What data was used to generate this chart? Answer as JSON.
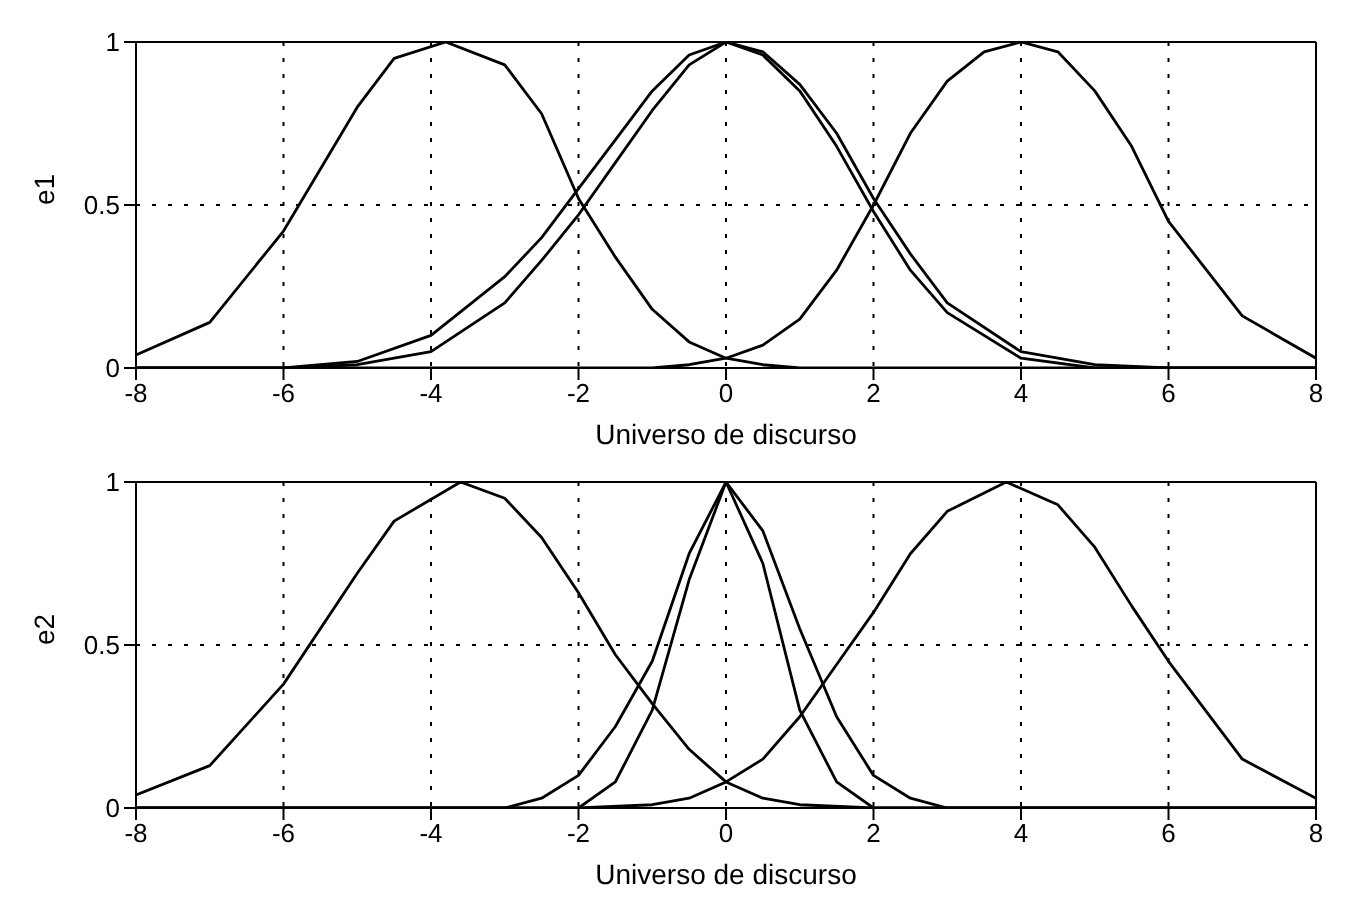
{
  "chart_data": [
    {
      "type": "line",
      "xlabel": "Universo de discurso",
      "ylabel": "e1",
      "xlim": [
        -8,
        8
      ],
      "xticks": [
        -8,
        -6,
        -4,
        -2,
        0,
        2,
        4,
        6,
        8
      ],
      "ylim": [
        0,
        1
      ],
      "yticks": [
        0,
        0.5,
        1
      ],
      "grid": true,
      "marker": "none",
      "line_style": "solid",
      "series": [
        {
          "color": "#000000",
          "x": [
            -8,
            -7,
            -6,
            -5,
            -4.5,
            -3.8,
            -3,
            -2.5,
            -2,
            -1.5,
            -1,
            -0.5,
            0,
            0.5,
            1,
            8
          ],
          "values": [
            0.04,
            0.14,
            0.42,
            0.8,
            0.95,
            1,
            0.93,
            0.78,
            0.52,
            0.34,
            0.18,
            0.08,
            0.03,
            0.01,
            0,
            0
          ]
        },
        {
          "color": "#000000",
          "x": [
            -8,
            -1,
            -0.5,
            0,
            0.5,
            1,
            1.5,
            2,
            2.5,
            3,
            3.5,
            4,
            4.5,
            5,
            5.5,
            6,
            7,
            8
          ],
          "values": [
            0,
            0,
            0.01,
            0.03,
            0.07,
            0.15,
            0.3,
            0.5,
            0.72,
            0.88,
            0.97,
            1,
            0.97,
            0.85,
            0.68,
            0.45,
            0.16,
            0.03
          ]
        },
        {
          "color": "#000000",
          "x": [
            -8,
            -6,
            -5,
            -4,
            -3,
            -2.5,
            -2,
            -1.5,
            -1,
            -0.5,
            0,
            0.5,
            1,
            1.5,
            2,
            2.5,
            3,
            4,
            5,
            6,
            8
          ],
          "values": [
            0,
            0,
            0.02,
            0.1,
            0.28,
            0.4,
            0.55,
            0.7,
            0.85,
            0.96,
            1,
            0.97,
            0.87,
            0.72,
            0.52,
            0.35,
            0.2,
            0.05,
            0.01,
            0,
            0
          ]
        },
        {
          "color": "#000000",
          "x": [
            -8,
            -6,
            -5,
            -4,
            -3,
            -2.5,
            -2,
            -1.5,
            -1,
            -0.5,
            0,
            0.5,
            1,
            1.5,
            2,
            2.5,
            3,
            4,
            5,
            6,
            8
          ],
          "values": [
            0,
            0,
            0.01,
            0.05,
            0.2,
            0.33,
            0.47,
            0.63,
            0.79,
            0.93,
            1,
            0.96,
            0.85,
            0.68,
            0.48,
            0.3,
            0.17,
            0.03,
            0,
            0,
            0
          ]
        }
      ]
    },
    {
      "type": "line",
      "xlabel": "Universo de discurso",
      "ylabel": "e2",
      "xlim": [
        -8,
        8
      ],
      "xticks": [
        -8,
        -6,
        -4,
        -2,
        0,
        2,
        4,
        6,
        8
      ],
      "ylim": [
        0,
        1
      ],
      "yticks": [
        0,
        0.5,
        1
      ],
      "grid": true,
      "marker": "none",
      "line_style": "solid",
      "series": [
        {
          "color": "#000000",
          "x": [
            -8,
            -7,
            -6,
            -5,
            -4.5,
            -3.6,
            -3,
            -2.5,
            -2,
            -1.5,
            -1,
            -0.5,
            0,
            0.5,
            1,
            2,
            8
          ],
          "values": [
            0.04,
            0.13,
            0.38,
            0.72,
            0.88,
            1,
            0.95,
            0.83,
            0.66,
            0.47,
            0.32,
            0.18,
            0.08,
            0.03,
            0.01,
            0,
            0
          ]
        },
        {
          "color": "#000000",
          "x": [
            -8,
            -2,
            -1,
            -0.5,
            0,
            0.5,
            1,
            1.5,
            2,
            2.5,
            3,
            3.8,
            4.5,
            5,
            5.5,
            6,
            7,
            8
          ],
          "values": [
            0,
            0,
            0.01,
            0.03,
            0.08,
            0.15,
            0.28,
            0.44,
            0.6,
            0.78,
            0.91,
            1,
            0.93,
            0.8,
            0.62,
            0.45,
            0.15,
            0.03
          ]
        },
        {
          "color": "#000000",
          "x": [
            -8,
            -3,
            -2.5,
            -2,
            -1.5,
            -1,
            -0.5,
            0,
            0.5,
            1,
            1.5,
            2,
            2.5,
            3,
            8
          ],
          "values": [
            0,
            0,
            0.03,
            0.1,
            0.25,
            0.45,
            0.78,
            1,
            0.85,
            0.55,
            0.28,
            0.1,
            0.03,
            0,
            0
          ]
        },
        {
          "color": "#000000",
          "x": [
            -8,
            -2,
            -1.5,
            -1,
            -0.5,
            0,
            0.5,
            1,
            1.5,
            2,
            8
          ],
          "values": [
            0,
            0,
            0.08,
            0.3,
            0.7,
            1,
            0.75,
            0.3,
            0.08,
            0,
            0
          ]
        }
      ]
    }
  ]
}
